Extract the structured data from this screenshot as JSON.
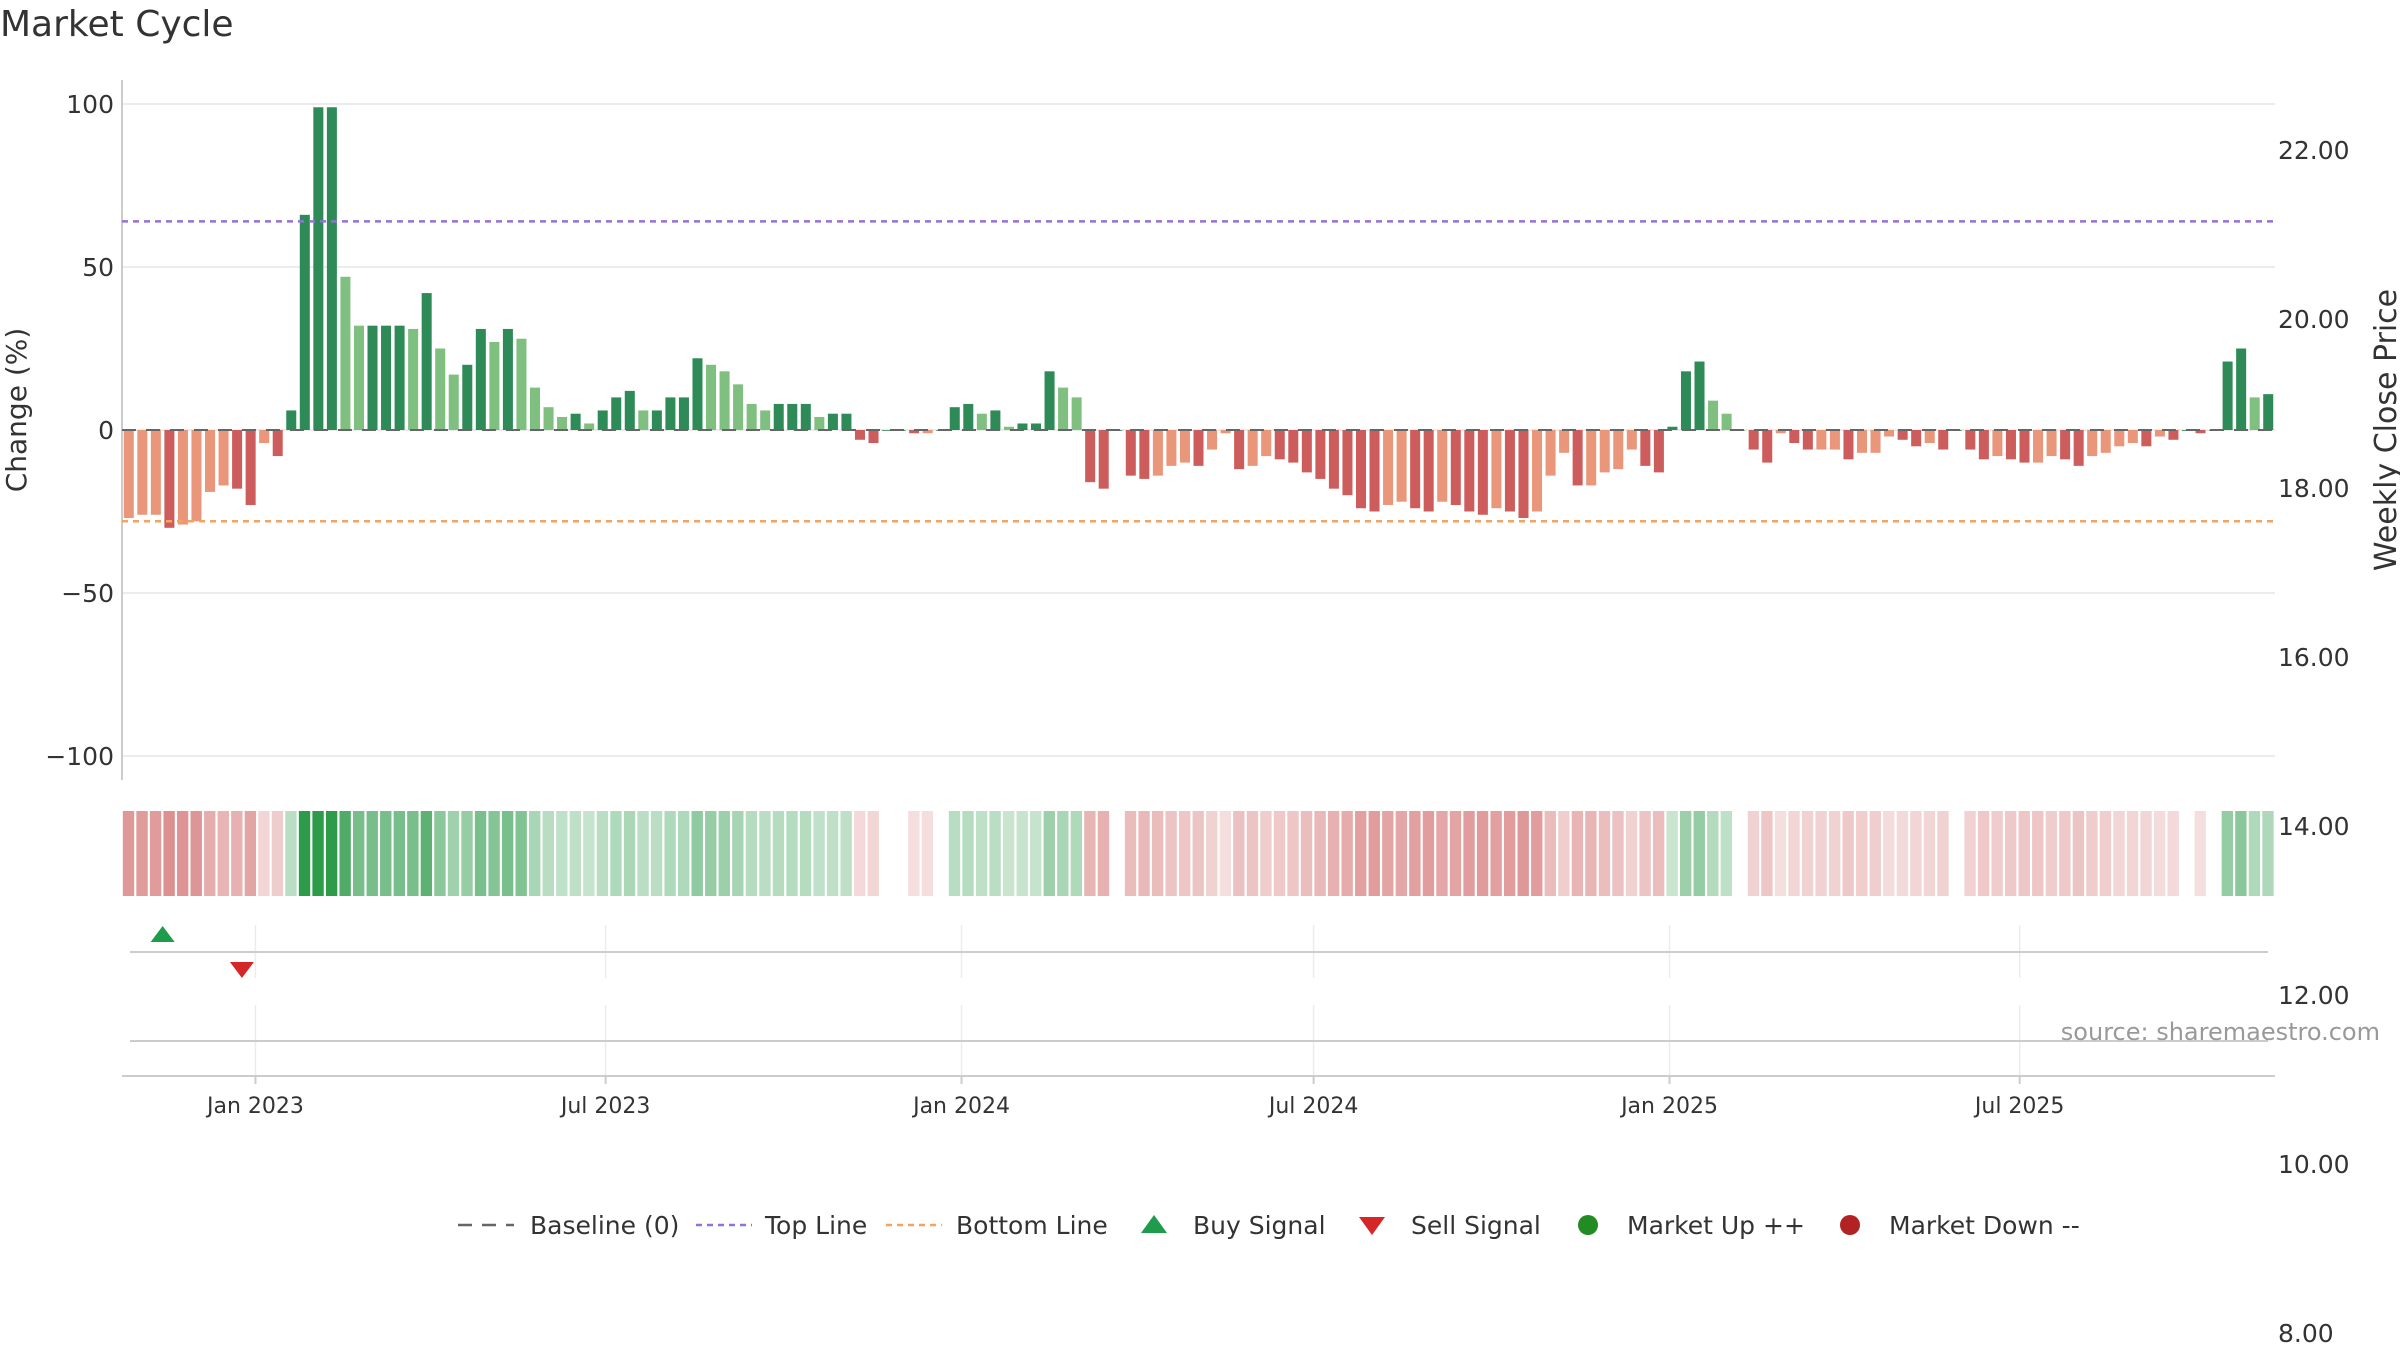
{
  "title": "Market Cycle",
  "source_note": "source: sharemaestro.com",
  "colors": {
    "up_strong": "#2e8b57",
    "up_light": "#7fbf7f",
    "down_strong": "#cd5c5c",
    "down_light": "#e9967a",
    "top_line": "#9370db",
    "bottom_line": "#f4a460",
    "baseline": "#666666",
    "buy": "#1e9b4b",
    "sell": "#d62728",
    "market_up": "#228b22",
    "market_down": "#b22222"
  },
  "chart_data": {
    "type": "bar",
    "ylabel": "Change (%)",
    "y2label": "Weekly Close Price",
    "ylim": [
      -100,
      100
    ],
    "y_ticks": [
      "100",
      "50",
      "0",
      "−50",
      "−100"
    ],
    "y2lim": [
      7.0,
      23.5
    ],
    "y2_ticks": [
      "22.00",
      "20.00",
      "18.00",
      "16.00",
      "14.00",
      "12.00",
      "10.00",
      "8.00"
    ],
    "x_ticks": [
      "Jan 2023",
      "Jul 2023",
      "Jan 2024",
      "Jul 2024",
      "Jan 2025",
      "Jul 2025"
    ],
    "x_tick_dates": [
      "2023-01-01",
      "2023-07-01",
      "2024-01-01",
      "2024-07-01",
      "2025-01-01",
      "2025-07-01"
    ],
    "x_start": "2022-10-24",
    "top_line": 64,
    "bottom_line": -28,
    "values": [
      -27,
      -26,
      -26,
      -30,
      -29,
      -28,
      -19,
      -17,
      -18,
      -23,
      -4,
      -8,
      6,
      66,
      99,
      99,
      47,
      32,
      32,
      32,
      32,
      31,
      42,
      25,
      17,
      20,
      31,
      27,
      31,
      28,
      13,
      7,
      4,
      5,
      2,
      6,
      10,
      12,
      6,
      6,
      10,
      10,
      22,
      20,
      18,
      14,
      8,
      6,
      8,
      8,
      8,
      4,
      5,
      5,
      -3,
      -4,
      0,
      0,
      -1,
      -1,
      0,
      7,
      8,
      5,
      6,
      1,
      2,
      2,
      18,
      13,
      10,
      -16,
      -18,
      0,
      -14,
      -15,
      -14,
      -11,
      -10,
      -11,
      -6,
      -1,
      -12,
      -11,
      -8,
      -9,
      -10,
      -13,
      -15,
      -18,
      -20,
      -24,
      -25,
      -23,
      -22,
      -24,
      -25,
      -22,
      -23,
      -25,
      -26,
      -24,
      -25,
      -27,
      -25,
      -14,
      -7,
      -17,
      -17,
      -13,
      -12,
      -6,
      -11,
      -13,
      1,
      18,
      21,
      9,
      5,
      0,
      -6,
      -10,
      -1,
      -4,
      -6,
      -6,
      -6,
      -9,
      -7,
      -7,
      -2,
      -3,
      -5,
      -4,
      -6,
      0,
      -6,
      -9,
      -8,
      -9,
      -10,
      -10,
      -8,
      -9,
      -11,
      -8,
      -7,
      -5,
      -4,
      -5,
      -2,
      -3,
      0,
      -1,
      0,
      21,
      25,
      10,
      11
    ],
    "buy_signals": [
      "2022-11-14"
    ],
    "sell_signals": [
      "2022-12-25"
    ],
    "legend": [
      "Baseline (0)",
      "Top Line",
      "Bottom Line",
      "Buy Signal",
      "Sell Signal",
      "Market Up ++",
      "Market Down --"
    ],
    "legend_placement": "bottom-center",
    "grid": true
  }
}
